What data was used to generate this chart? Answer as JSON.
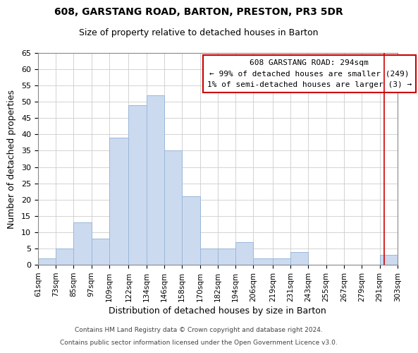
{
  "title": "608, GARSTANG ROAD, BARTON, PRESTON, PR3 5DR",
  "subtitle": "Size of property relative to detached houses in Barton",
  "xlabel": "Distribution of detached houses by size in Barton",
  "ylabel": "Number of detached properties",
  "footnote1": "Contains HM Land Registry data © Crown copyright and database right 2024.",
  "footnote2": "Contains public sector information licensed under the Open Government Licence v3.0.",
  "bar_color": "#ccdaf0",
  "bar_edgecolor": "#99b8d8",
  "annotation_box_edgecolor": "#cc0000",
  "annotation_line_color": "#cc0000",
  "annotation_title": "608 GARSTANG ROAD: 294sqm",
  "annotation_line2": "← 99% of detached houses are smaller (249)",
  "annotation_line3": "1% of semi-detached houses are larger (3) →",
  "bins": [
    61,
    73,
    85,
    97,
    109,
    122,
    134,
    146,
    158,
    170,
    182,
    194,
    206,
    219,
    231,
    243,
    255,
    267,
    279,
    291,
    303
  ],
  "counts": [
    2,
    5,
    13,
    8,
    39,
    49,
    52,
    35,
    21,
    5,
    5,
    7,
    2,
    2,
    4,
    0,
    0,
    0,
    0,
    3
  ],
  "tick_labels": [
    "61sqm",
    "73sqm",
    "85sqm",
    "97sqm",
    "109sqm",
    "122sqm",
    "134sqm",
    "146sqm",
    "158sqm",
    "170sqm",
    "182sqm",
    "194sqm",
    "206sqm",
    "219sqm",
    "231sqm",
    "243sqm",
    "255sqm",
    "267sqm",
    "279sqm",
    "291sqm",
    "303sqm"
  ],
  "ylim": [
    0,
    65
  ],
  "yticks": [
    0,
    5,
    10,
    15,
    20,
    25,
    30,
    35,
    40,
    45,
    50,
    55,
    60,
    65
  ],
  "vline_x": 294
}
